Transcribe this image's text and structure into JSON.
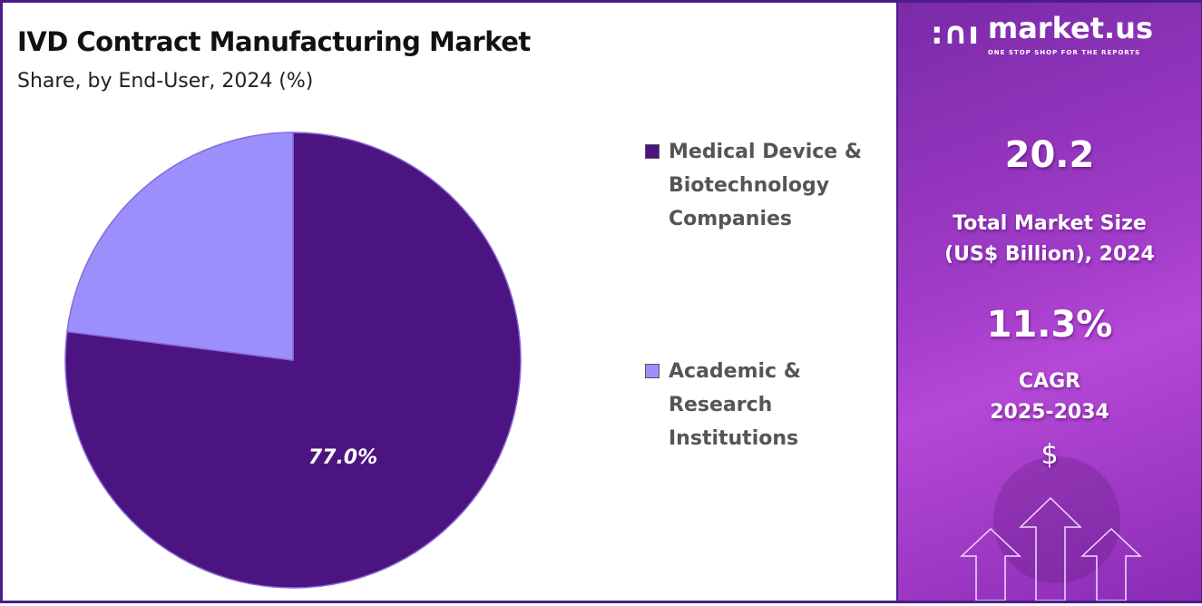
{
  "chart_data": {
    "type": "pie",
    "title": "IVD Contract Manufacturing Market",
    "subtitle": "Share, by End-User, 2024 (%)",
    "slices": [
      {
        "label": "Medical Device & Biotechnology Companies",
        "value": 77.0,
        "color": "#4b1480",
        "data_label": "77.0%"
      },
      {
        "label": "Academic & Research Institutions",
        "value": 23.0,
        "color": "#9b90fb"
      }
    ],
    "legend_position": "right"
  },
  "panel": {
    "brand": "market.us",
    "tagline": "ONE STOP SHOP FOR THE REPORTS",
    "market_size": "20.2",
    "market_size_label_1": "Total Market Size",
    "market_size_label_2": "(US$ Billion), 2024",
    "cagr": "11.3%",
    "cagr_label_1": "CAGR",
    "cagr_label_2": "2025-2034",
    "currency_symbol": "$"
  }
}
